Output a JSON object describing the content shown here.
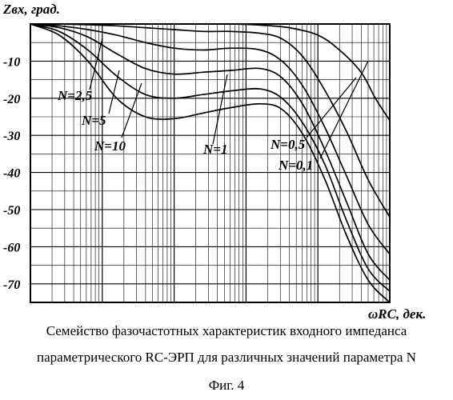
{
  "chart_data": {
    "type": "line",
    "ylabel": "Zвх, град.",
    "xlabel": "ωRC, дек.",
    "ylim": [
      -75,
      0
    ],
    "yticks": [
      "-10",
      "-20",
      "-30",
      "-40",
      "-50",
      "-60",
      "-70"
    ],
    "ytick_values": [
      -10,
      -20,
      -30,
      -40,
      -50,
      -60,
      -70
    ],
    "x_scale": "log",
    "xlim": [
      -3,
      2
    ],
    "grid": true,
    "series": [
      {
        "name": "N=0,1",
        "x": [
          -3,
          -2.6,
          -2.2,
          -1.8,
          -1.4,
          -1,
          -0.6,
          -0.2,
          0.2,
          0.6,
          1,
          1.3,
          1.6,
          1.8,
          2
        ],
        "y": [
          0,
          0,
          0,
          0,
          0,
          0,
          0,
          0,
          -0.3,
          -1,
          -3,
          -7,
          -13,
          -20,
          -26
        ]
      },
      {
        "name": "N=0,5",
        "x": [
          -3,
          -2.6,
          -2.2,
          -1.8,
          -1.4,
          -1,
          -0.6,
          -0.2,
          0.2,
          0.5,
          0.8,
          1.1,
          1.4,
          1.7,
          2
        ],
        "y": [
          0,
          0,
          -0.2,
          -0.5,
          -1,
          -1.5,
          -2,
          -2,
          -2.5,
          -4,
          -9,
          -18,
          -29,
          -42,
          -52
        ]
      },
      {
        "name": "N=1",
        "x": [
          -3,
          -2.6,
          -2.2,
          -1.8,
          -1.4,
          -1,
          -0.6,
          -0.2,
          0.2,
          0.5,
          0.8,
          1.1,
          1.4,
          1.7,
          2
        ],
        "y": [
          0,
          -0.5,
          -1.5,
          -3,
          -5,
          -6.5,
          -7,
          -6.5,
          -7,
          -10,
          -17,
          -28,
          -41,
          -54,
          -62
        ]
      },
      {
        "name": "N=2,5",
        "x": [
          -3,
          -2.6,
          -2.2,
          -1.8,
          -1.4,
          -1,
          -0.6,
          -0.2,
          0.2,
          0.5,
          0.8,
          1.1,
          1.4,
          1.7,
          2
        ],
        "y": [
          0,
          -1,
          -3.5,
          -8,
          -12,
          -13.5,
          -13,
          -12.5,
          -12,
          -14.5,
          -22,
          -34,
          -48,
          -62,
          -69
        ]
      },
      {
        "name": "N=5",
        "x": [
          -3,
          -2.6,
          -2.2,
          -1.8,
          -1.4,
          -1,
          -0.6,
          -0.2,
          0.2,
          0.5,
          0.8,
          1.1,
          1.4,
          1.7,
          2
        ],
        "y": [
          0,
          -2,
          -7,
          -14,
          -19,
          -20,
          -19,
          -18,
          -17.5,
          -20,
          -27,
          -38,
          -53,
          -66,
          -72
        ]
      },
      {
        "name": "N=10",
        "x": [
          -3,
          -2.6,
          -2.2,
          -1.8,
          -1.4,
          -1,
          -0.6,
          -0.2,
          0.2,
          0.5,
          0.8,
          1.1,
          1.4,
          1.7,
          2
        ],
        "y": [
          0,
          -3,
          -10,
          -20,
          -25,
          -25.5,
          -24,
          -22.5,
          -21.5,
          -23,
          -30,
          -42,
          -57,
          -69,
          -75
        ]
      }
    ],
    "annotations": [
      "N=2,5",
      "N=5",
      "N=10",
      "N=1",
      "N=0,5",
      "N=0,1"
    ]
  },
  "caption": {
    "line1": "Семейство фазочастотных характеристик входного импеданса",
    "line2": "параметрического  RC-ЭРП для различных значений параметра N",
    "fig": "Фиг. 4"
  }
}
